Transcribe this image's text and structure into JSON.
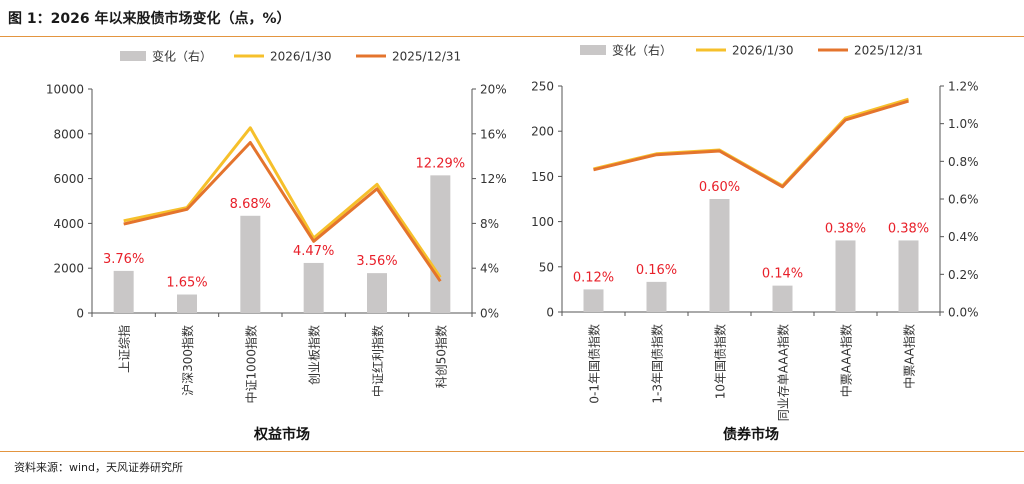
{
  "figure": {
    "title": "图 1：2026 年以来股债市场变化（点，%）",
    "source": "资料来源：wind，天风证券研究所"
  },
  "colors": {
    "bar": "#c9c7c7",
    "series_2026": "#f6c02b",
    "series_2025": "#e4742d",
    "label": "#e8202a",
    "axis": "#555555",
    "rule": "#e39540"
  },
  "chart_data": [
    {
      "type": "bar",
      "title": "权益市场",
      "categories": [
        "上证综指",
        "沪深300指数",
        "中证1000指数",
        "创业板指数",
        "中证红利指数",
        "科创50指数"
      ],
      "legend": [
        "变化（右）",
        "2026/1/30",
        "2025/12/31"
      ],
      "legend_position": "top",
      "y_left": {
        "ticks": [
          "0",
          "2000",
          "4000",
          "6000",
          "8000",
          "10000"
        ],
        "range": [
          0,
          10000
        ]
      },
      "y_right": {
        "ticks": [
          "0%",
          "4%",
          "8%",
          "12%",
          "16%",
          "20%"
        ],
        "range": [
          0,
          20
        ]
      },
      "series": [
        {
          "name": "变化（右）",
          "kind": "bar",
          "axis": "right",
          "values": [
            3.76,
            1.65,
            8.68,
            4.47,
            3.56,
            12.29
          ],
          "labels": [
            "3.76%",
            "1.65%",
            "8.68%",
            "4.47%",
            "3.56%",
            "12.29%"
          ]
        },
        {
          "name": "2026/1/30",
          "kind": "line",
          "axis": "left",
          "values": [
            4118,
            4707,
            8270,
            3346,
            5740,
            1592
          ]
        },
        {
          "name": "2025/12/31",
          "kind": "line",
          "axis": "left",
          "values": [
            3969,
            4630,
            7610,
            3203,
            5543,
            1418
          ]
        }
      ]
    },
    {
      "type": "bar",
      "title": "债券市场",
      "categories": [
        "0-1年国债指数",
        "1-3年国债指数",
        "10年国债指数",
        "同业存单AAA指数",
        "中票AAA指数",
        "中票AA指数"
      ],
      "legend": [
        "变化（右）",
        "2026/1/30",
        "2025/12/31"
      ],
      "legend_position": "top",
      "y_left": {
        "ticks": [
          "0",
          "50",
          "100",
          "150",
          "200",
          "250"
        ],
        "range": [
          0,
          250
        ]
      },
      "y_right": {
        "ticks": [
          "0.0%",
          "0.2%",
          "0.4%",
          "0.6%",
          "0.8%",
          "1.0%",
          "1.2%"
        ],
        "range": [
          0,
          1.2
        ]
      },
      "series": [
        {
          "name": "变化（右）",
          "kind": "bar",
          "axis": "right",
          "values": [
            0.12,
            0.16,
            0.6,
            0.14,
            0.38,
            0.38
          ],
          "labels": [
            "0.12%",
            "0.16%",
            "0.60%",
            "0.14%",
            "0.38%",
            "0.38%"
          ]
        },
        {
          "name": "2026/1/30",
          "kind": "line",
          "axis": "right",
          "values": [
            0.76,
            0.84,
            0.86,
            0.67,
            1.03,
            1.13
          ]
        },
        {
          "name": "2025/12/31",
          "kind": "line",
          "axis": "right",
          "values": [
            0.755,
            0.835,
            0.855,
            0.665,
            1.02,
            1.12
          ]
        }
      ]
    }
  ]
}
